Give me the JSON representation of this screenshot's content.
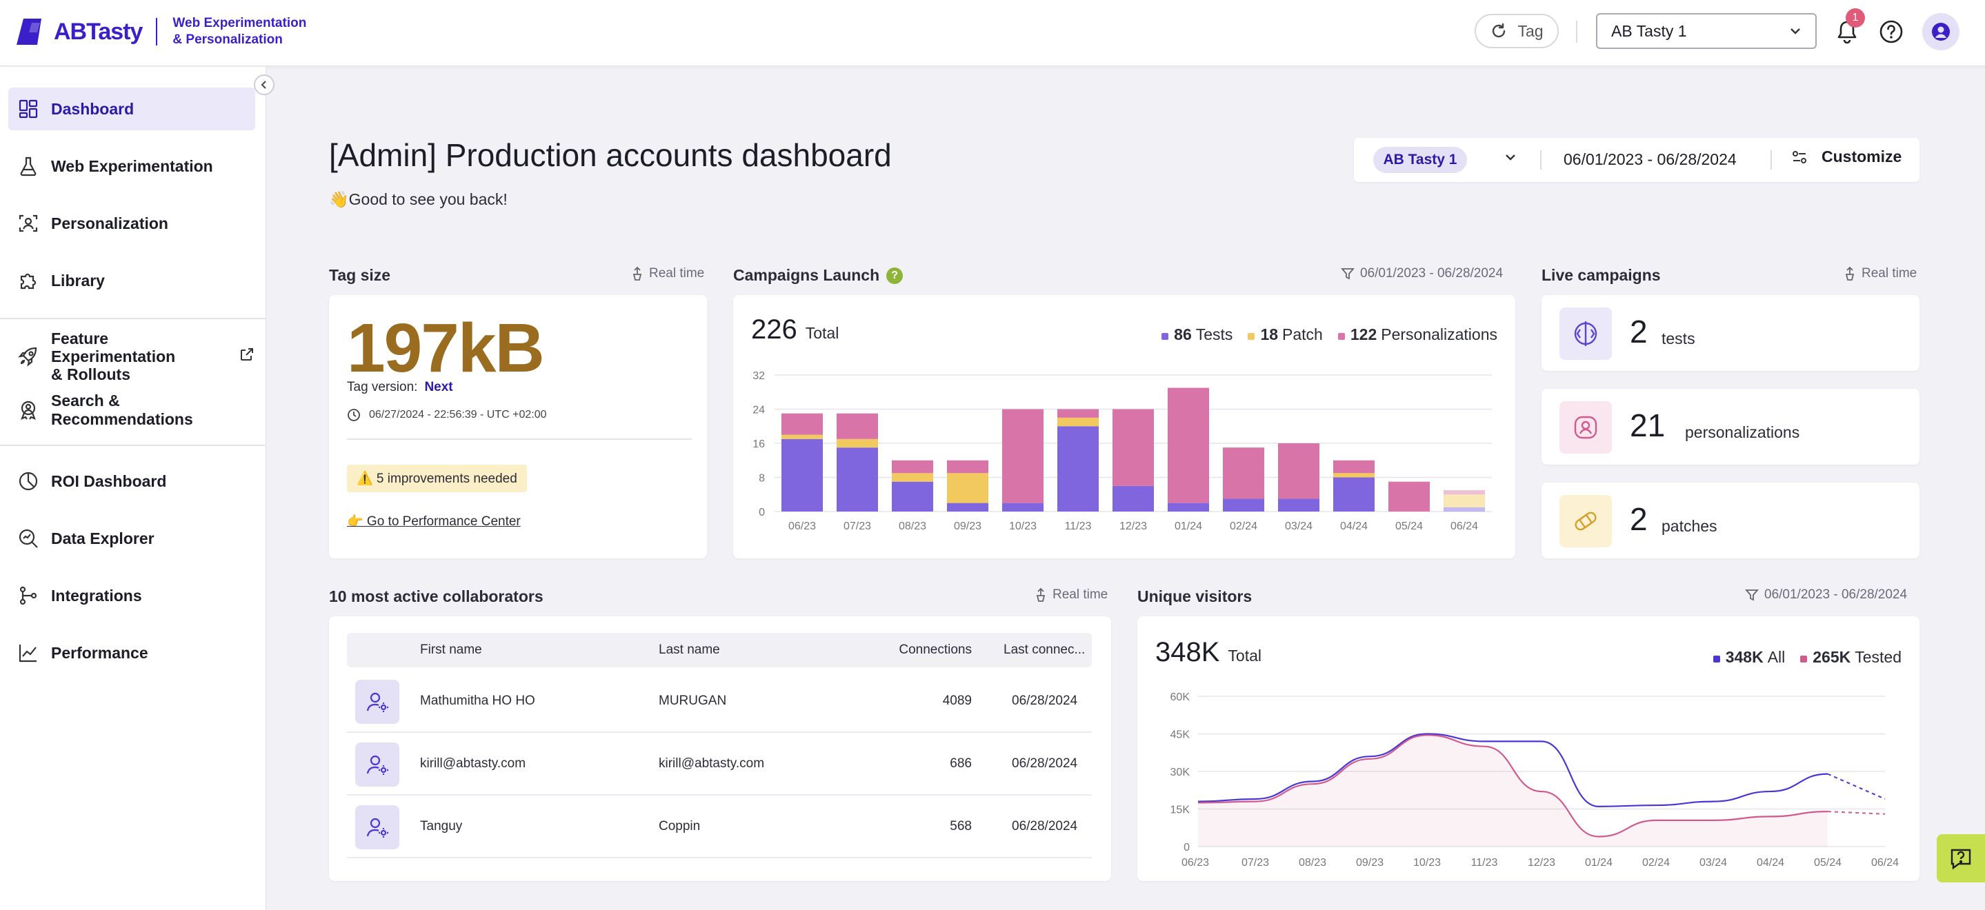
{
  "header": {
    "logo_text": "ABTasty",
    "product_line1": "Web Experimentation",
    "product_line2": "& Personalization",
    "tag_button": "Tag",
    "account_select": "AB Tasty 1",
    "notification_count": "1"
  },
  "sidebar": {
    "items": [
      {
        "label": "Dashboard",
        "icon": "dashboard-icon"
      },
      {
        "label": "Web Experimentation",
        "icon": "flask-icon"
      },
      {
        "label": "Personalization",
        "icon": "user-focus-icon"
      },
      {
        "label": "Library",
        "icon": "puzzle-icon"
      },
      {
        "label_line1": "Feature Experimentation",
        "label_line2": "& Rollouts",
        "icon": "rocket-icon"
      },
      {
        "label": "Search & Recommendations",
        "icon": "badge-icon"
      },
      {
        "label": "ROI Dashboard",
        "icon": "pie-icon"
      },
      {
        "label": "Data Explorer",
        "icon": "search-data-icon"
      },
      {
        "label": "Integrations",
        "icon": "integrations-icon"
      },
      {
        "label": "Performance",
        "icon": "trend-icon"
      }
    ]
  },
  "page": {
    "title": "[Admin] Production accounts dashboard",
    "greeting": "👋Good to see you back!",
    "filter": {
      "account": "AB Tasty 1",
      "date_range": "06/01/2023 - 06/28/2024",
      "customize": "Customize"
    }
  },
  "tag_size": {
    "section_title": "Tag size",
    "realtime": "Real time",
    "value": "197kB",
    "version_label": "Tag version:",
    "version_value": "Next",
    "timestamp": "06/27/2024 - 22:56:39 - UTC +02:00",
    "improvements": "⚠️ 5 improvements needed",
    "perf_link": "👉 Go to Performance Center"
  },
  "campaigns": {
    "section_title": "Campaigns Launch",
    "date_range": "06/01/2023 - 06/28/2024",
    "total": "226",
    "total_label": "Total",
    "legend": [
      {
        "count": "86",
        "label": "Tests",
        "color": "#7f66de"
      },
      {
        "count": "18",
        "label": "Patch",
        "color": "#f1c95e"
      },
      {
        "count": "122",
        "label": "Personalizations",
        "color": "#d974a8"
      }
    ]
  },
  "live": {
    "section_title": "Live campaigns",
    "realtime": "Real time",
    "items": [
      {
        "value": "2",
        "label": "tests"
      },
      {
        "value": "21",
        "label": "personalizations"
      },
      {
        "value": "2",
        "label": "patches"
      }
    ]
  },
  "collaborators": {
    "section_title": "10 most active collaborators",
    "realtime": "Real time",
    "columns": [
      "First name",
      "Last name",
      "Connections",
      "Last connec..."
    ],
    "rows": [
      {
        "first": "Mathumitha HO HO",
        "last": "MURUGAN",
        "connections": "4089",
        "last_conn": "06/28/2024"
      },
      {
        "first": "kirill@abtasty.com",
        "last": "kirill@abtasty.com",
        "connections": "686",
        "last_conn": "06/28/2024"
      },
      {
        "first": "Tanguy",
        "last": "Coppin",
        "connections": "568",
        "last_conn": "06/28/2024"
      }
    ]
  },
  "visitors": {
    "section_title": "Unique visitors",
    "date_range": "06/01/2023 - 06/28/2024",
    "total": "348K",
    "total_label": "Total",
    "legend": [
      {
        "count": "348K",
        "label": "All",
        "color": "#4a35d6"
      },
      {
        "count": "265K",
        "label": "Tested",
        "color": "#d05a8e"
      }
    ]
  },
  "chart_data": [
    {
      "type": "bar",
      "title": "Campaigns Launch",
      "stacked": true,
      "categories": [
        "06/23",
        "07/23",
        "08/23",
        "09/23",
        "10/23",
        "11/23",
        "12/23",
        "01/24",
        "02/24",
        "03/24",
        "04/24",
        "05/24",
        "06/24"
      ],
      "series": [
        {
          "name": "Tests",
          "color": "#7f66de",
          "values": [
            17,
            15,
            7,
            2,
            2,
            20,
            6,
            2,
            3,
            3,
            8,
            0,
            1
          ]
        },
        {
          "name": "Patch",
          "color": "#f1c95e",
          "values": [
            1,
            2,
            2,
            7,
            0,
            2,
            0,
            0,
            0,
            0,
            1,
            0,
            3
          ]
        },
        {
          "name": "Personalizations",
          "color": "#d974a8",
          "values": [
            5,
            6,
            3,
            3,
            22,
            2,
            18,
            27,
            12,
            13,
            3,
            7,
            1
          ]
        }
      ],
      "ylim": [
        0,
        32
      ],
      "yticks": [
        0,
        8,
        16,
        24,
        32
      ]
    },
    {
      "type": "line",
      "title": "Unique visitors",
      "x": [
        "06/23",
        "07/23",
        "08/23",
        "09/23",
        "10/23",
        "11/23",
        "12/23",
        "01/24",
        "02/24",
        "03/24",
        "04/24",
        "05/24",
        "06/24"
      ],
      "series": [
        {
          "name": "All",
          "color": "#4a35d6",
          "values": [
            18000,
            19000,
            26000,
            36000,
            45000,
            42000,
            42000,
            16000,
            16500,
            18000,
            22000,
            29000,
            19000
          ]
        },
        {
          "name": "Tested",
          "color": "#d05a8e",
          "values": [
            17500,
            18000,
            25000,
            35000,
            44500,
            40000,
            22000,
            4000,
            10500,
            10500,
            12000,
            14000,
            13000
          ]
        }
      ],
      "ylim": [
        0,
        60000
      ],
      "yticks": [
        "0",
        "15K",
        "30K",
        "45K",
        "60K"
      ]
    }
  ]
}
